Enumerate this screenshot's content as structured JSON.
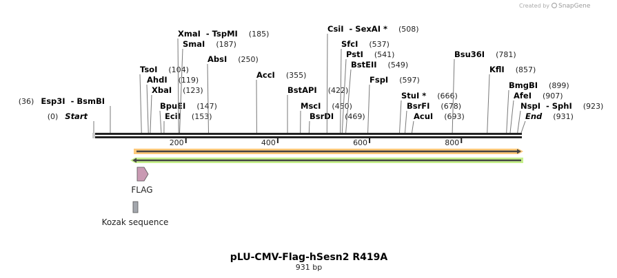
{
  "credit": {
    "prefix": "Created by",
    "brand": "SnapGene"
  },
  "map": {
    "title": "pLU-CMV-Flag-hSesn2 R419A",
    "length_label": "931 bp",
    "length_bp": 931,
    "ticks": [
      "200",
      "400",
      "600",
      "800"
    ],
    "tick_values": [
      200,
      400,
      600,
      800
    ]
  },
  "enzymes": [
    {
      "name": "Start",
      "pos": "(0)",
      "bp": 0
    },
    {
      "name": "Esp3I  - BsmBI",
      "pos": "(36)",
      "bp": 36
    },
    {
      "name": "TsoI",
      "pos": "(104)",
      "bp": 104
    },
    {
      "name": "AhdI",
      "pos": "(119)",
      "bp": 119
    },
    {
      "name": "XbaI",
      "pos": "(123)",
      "bp": 123
    },
    {
      "name": "BpuEI",
      "pos": "(147)",
      "bp": 147
    },
    {
      "name": "EciI",
      "pos": "(153)",
      "bp": 153
    },
    {
      "name": "XmaI  - TspMI",
      "pos": "(185)",
      "bp": 185
    },
    {
      "name": "SmaI",
      "pos": "(187)",
      "bp": 187
    },
    {
      "name": "AbsI",
      "pos": "(250)",
      "bp": 250
    },
    {
      "name": "AccI",
      "pos": "(355)",
      "bp": 355
    },
    {
      "name": "BstAPI",
      "pos": "(422)",
      "bp": 422
    },
    {
      "name": "MscI",
      "pos": "(450)",
      "bp": 450
    },
    {
      "name": "BsrDI",
      "pos": "(469)",
      "bp": 469
    },
    {
      "name": "CsiI  - SexAI *",
      "pos": "(508)",
      "bp": 508
    },
    {
      "name": "SfcI",
      "pos": "(537)",
      "bp": 537
    },
    {
      "name": "PstI",
      "pos": "(541)",
      "bp": 541
    },
    {
      "name": "BstEII",
      "pos": "(549)",
      "bp": 549
    },
    {
      "name": "FspI",
      "pos": "(597)",
      "bp": 597
    },
    {
      "name": "StuI *",
      "pos": "(666)",
      "bp": 666
    },
    {
      "name": "BsrFI",
      "pos": "(678)",
      "bp": 678
    },
    {
      "name": "AcuI",
      "pos": "(693)",
      "bp": 693
    },
    {
      "name": "Bsu36I",
      "pos": "(781)",
      "bp": 781
    },
    {
      "name": "KflI",
      "pos": "(857)",
      "bp": 857
    },
    {
      "name": "BmgBI",
      "pos": "(899)",
      "bp": 899
    },
    {
      "name": "AfeI",
      "pos": "(907)",
      "bp": 907
    },
    {
      "name": "NspI  - SphI",
      "pos": "(923)",
      "bp": 923
    },
    {
      "name": "End",
      "pos": "(931)",
      "bp": 931
    }
  ],
  "features": [
    {
      "name": "FLAG",
      "color": "#c99ab3"
    },
    {
      "name": "Kozak sequence",
      "color": "#a3a7ad"
    }
  ],
  "colors": {
    "orange_arrow": "#fdc97a",
    "green_arrow": "#c6f08c"
  }
}
